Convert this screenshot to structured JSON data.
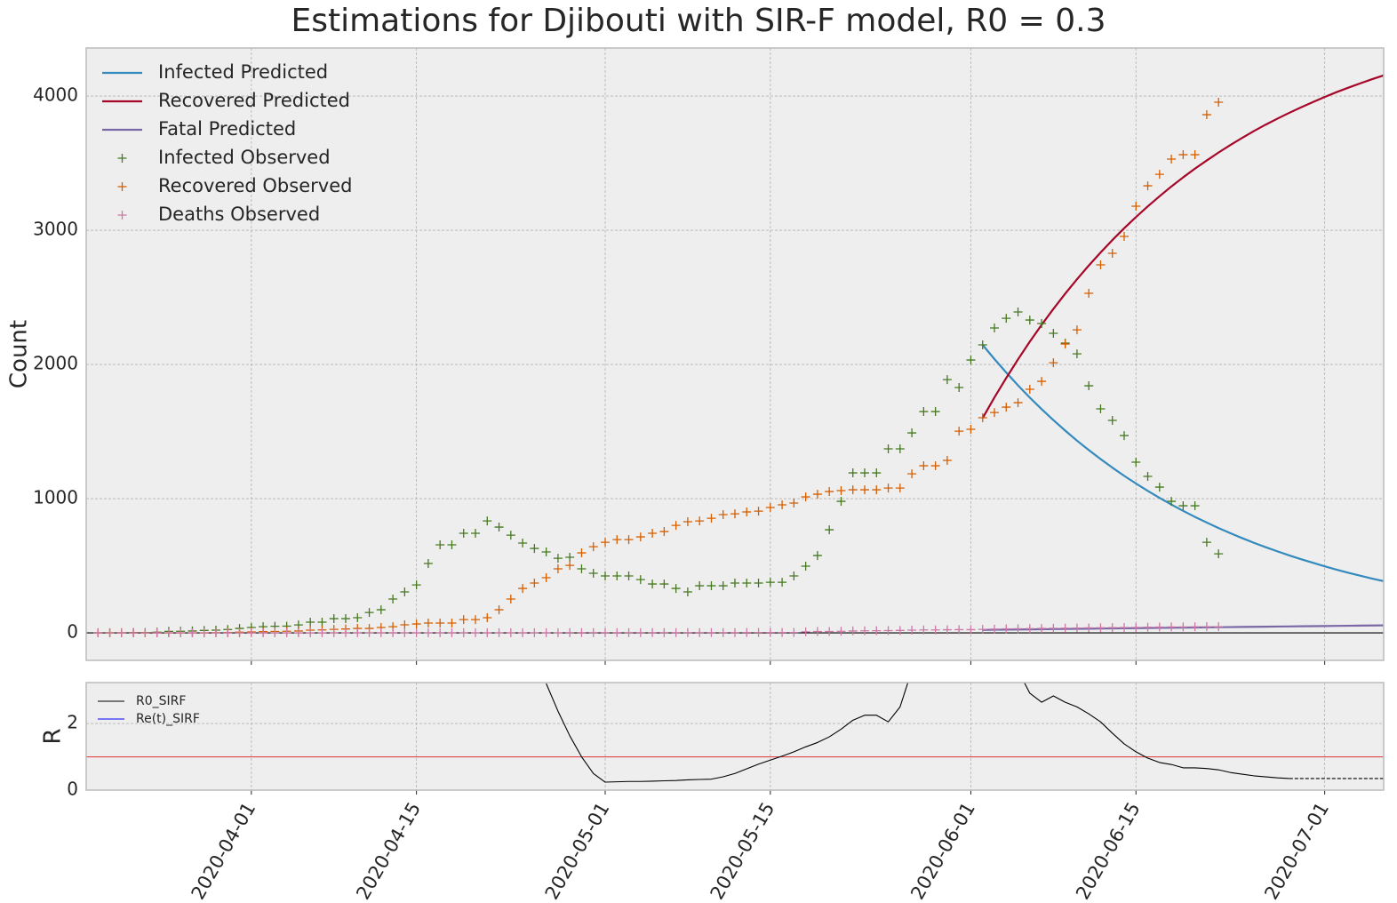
{
  "chart_data": [
    {
      "type": "line",
      "title": "Estimations for Djibouti with SIR-F model, R0 = 0.3",
      "ylabel": "Count",
      "xlim": [
        "2020-03-18",
        "2020-07-06"
      ],
      "xticks": [
        "2020-04-01",
        "2020-04-15",
        "2020-05-01",
        "2020-05-15",
        "2020-06-01",
        "2020-06-15",
        "2020-07-01"
      ],
      "ylim": [
        -205,
        4358
      ],
      "yticks": [
        0,
        1000,
        2000,
        3000,
        4000
      ],
      "grid": true,
      "legend": "upper left",
      "hline": {
        "value": 0,
        "color": "#000000"
      },
      "x": [
        "2020-03-19",
        "2020-03-20",
        "2020-03-21",
        "2020-03-22",
        "2020-03-23",
        "2020-03-24",
        "2020-03-25",
        "2020-03-26",
        "2020-03-27",
        "2020-03-28",
        "2020-03-29",
        "2020-03-30",
        "2020-03-31",
        "2020-04-01",
        "2020-04-02",
        "2020-04-03",
        "2020-04-04",
        "2020-04-05",
        "2020-04-06",
        "2020-04-07",
        "2020-04-08",
        "2020-04-09",
        "2020-04-10",
        "2020-04-11",
        "2020-04-12",
        "2020-04-13",
        "2020-04-14",
        "2020-04-15",
        "2020-04-16",
        "2020-04-17",
        "2020-04-18",
        "2020-04-19",
        "2020-04-20",
        "2020-04-21",
        "2020-04-22",
        "2020-04-23",
        "2020-04-24",
        "2020-04-25",
        "2020-04-26",
        "2020-04-27",
        "2020-04-28",
        "2020-04-29",
        "2020-04-30",
        "2020-05-01",
        "2020-05-02",
        "2020-05-03",
        "2020-05-04",
        "2020-05-05",
        "2020-05-06",
        "2020-05-07",
        "2020-05-08",
        "2020-05-09",
        "2020-05-10",
        "2020-05-11",
        "2020-05-12",
        "2020-05-13",
        "2020-05-14",
        "2020-05-15",
        "2020-05-16",
        "2020-05-17",
        "2020-05-18",
        "2020-05-19",
        "2020-05-20",
        "2020-05-21",
        "2020-05-22",
        "2020-05-23",
        "2020-05-24",
        "2020-05-25",
        "2020-05-26",
        "2020-05-27",
        "2020-05-28",
        "2020-05-29",
        "2020-05-30",
        "2020-05-31",
        "2020-06-01",
        "2020-06-02",
        "2020-06-03",
        "2020-06-04",
        "2020-06-05",
        "2020-06-06",
        "2020-06-07",
        "2020-06-08",
        "2020-06-09",
        "2020-06-10",
        "2020-06-11",
        "2020-06-12",
        "2020-06-13",
        "2020-06-14",
        "2020-06-15",
        "2020-06-16",
        "2020-06-17",
        "2020-06-18",
        "2020-06-19",
        "2020-06-20",
        "2020-06-21",
        "2020-06-22"
      ],
      "series": [
        {
          "name": "Infected Predicted",
          "color": "#348abd",
          "style": "line",
          "x": [
            "2020-06-02",
            "2020-06-03",
            "2020-06-04",
            "2020-06-05",
            "2020-06-06",
            "2020-06-07",
            "2020-06-08",
            "2020-06-09",
            "2020-06-10",
            "2020-06-11",
            "2020-06-12",
            "2020-06-13",
            "2020-06-14",
            "2020-06-15",
            "2020-06-16",
            "2020-06-17",
            "2020-06-18",
            "2020-06-19",
            "2020-06-20",
            "2020-06-21",
            "2020-06-22",
            "2020-06-23",
            "2020-06-24",
            "2020-06-25",
            "2020-06-26",
            "2020-06-27",
            "2020-06-28",
            "2020-06-29",
            "2020-06-30",
            "2020-07-01",
            "2020-07-02",
            "2020-07-03",
            "2020-07-04",
            "2020-07-05",
            "2020-07-06"
          ],
          "values": [
            2146,
            2040,
            1940,
            1844,
            1753,
            1667,
            1585,
            1507,
            1432,
            1362,
            1295,
            1231,
            1170,
            1113,
            1058,
            1006,
            956,
            909,
            864,
            822,
            781,
            743,
            706,
            671,
            638,
            607,
            577,
            549,
            522,
            496,
            471,
            448,
            426,
            405,
            385
          ]
        },
        {
          "name": "Recovered Predicted",
          "color": "#a60628",
          "style": "line",
          "x": [
            "2020-06-02",
            "2020-06-03",
            "2020-06-04",
            "2020-06-05",
            "2020-06-06",
            "2020-06-07",
            "2020-06-08",
            "2020-06-09",
            "2020-06-10",
            "2020-06-11",
            "2020-06-12",
            "2020-06-13",
            "2020-06-14",
            "2020-06-15",
            "2020-06-16",
            "2020-06-17",
            "2020-06-18",
            "2020-06-19",
            "2020-06-20",
            "2020-06-21",
            "2020-06-22",
            "2020-06-23",
            "2020-06-24",
            "2020-06-25",
            "2020-06-26",
            "2020-06-27",
            "2020-06-28",
            "2020-06-29",
            "2020-06-30",
            "2020-07-01",
            "2020-07-02",
            "2020-07-03",
            "2020-07-04",
            "2020-07-05",
            "2020-07-06"
          ],
          "values": [
            1600,
            1754,
            1899,
            2038,
            2170,
            2295,
            2414,
            2527,
            2635,
            2737,
            2834,
            2927,
            3015,
            3098,
            3178,
            3253,
            3326,
            3394,
            3459,
            3520,
            3579,
            3635,
            3688,
            3739,
            3787,
            3832,
            3875,
            3916,
            3955,
            3993,
            4029,
            4062,
            4094,
            4125,
            4154
          ]
        },
        {
          "name": "Fatal Predicted",
          "color": "#7a68a6",
          "style": "line",
          "x": [
            "2020-06-02",
            "2020-06-03",
            "2020-06-04",
            "2020-06-05",
            "2020-06-06",
            "2020-06-07",
            "2020-06-08",
            "2020-06-09",
            "2020-06-10",
            "2020-06-11",
            "2020-06-12",
            "2020-06-13",
            "2020-06-14",
            "2020-06-15",
            "2020-06-16",
            "2020-06-17",
            "2020-06-18",
            "2020-06-19",
            "2020-06-20",
            "2020-06-21",
            "2020-06-22",
            "2020-06-23",
            "2020-06-24",
            "2020-06-25",
            "2020-06-26",
            "2020-06-27",
            "2020-06-28",
            "2020-06-29",
            "2020-06-30",
            "2020-07-01",
            "2020-07-02",
            "2020-07-03",
            "2020-07-04",
            "2020-07-05",
            "2020-07-06"
          ],
          "values": [
            22,
            23,
            24,
            25,
            26,
            27,
            28,
            29,
            30,
            31,
            32,
            33,
            34,
            35,
            36,
            37,
            38,
            39,
            40,
            41,
            42,
            43,
            44,
            45,
            46,
            47,
            48,
            49,
            50,
            51,
            52,
            53,
            54,
            55,
            56
          ]
        },
        {
          "name": "Infected Observed",
          "color": "#467821",
          "style": "marker",
          "values": [
            1,
            1,
            1,
            3,
            3,
            5,
            11,
            12,
            14,
            18,
            20,
            25,
            33,
            40,
            46,
            49,
            50,
            59,
            80,
            80,
            106,
            106,
            113,
            152,
            172,
            252,
            305,
            357,
            517,
            656,
            656,
            742,
            742,
            834,
            788,
            728,
            669,
            629,
            603,
            556,
            563,
            477,
            444,
            424,
            424,
            424,
            397,
            364,
            364,
            331,
            305,
            351,
            351,
            351,
            371,
            371,
            371,
            377,
            377,
            424,
            497,
            576,
            768,
            980,
            1192,
            1192,
            1192,
            1371,
            1371,
            1490,
            1649,
            1649,
            1887,
            1828,
            2033,
            2146,
            2272,
            2344,
            2391,
            2331,
            2305,
            2232,
            2159,
            2079,
            1841,
            1669,
            1583,
            1470,
            1272,
            1166,
            1086,
            980,
            947,
            947,
            675,
            589
          ]
        },
        {
          "name": "Recovered Observed",
          "color": "#d55e00",
          "style": "marker",
          "values": [
            0,
            0,
            0,
            0,
            0,
            0,
            0,
            0,
            0,
            0,
            2,
            3,
            5,
            7,
            9,
            10,
            12,
            14,
            20,
            22,
            26,
            29,
            33,
            33,
            40,
            46,
            60,
            66,
            73,
            73,
            73,
            99,
            99,
            113,
            172,
            252,
            331,
            371,
            411,
            477,
            503,
            596,
            642,
            675,
            695,
            695,
            715,
            742,
            755,
            801,
            828,
            834,
            854,
            881,
            887,
            901,
            907,
            934,
            954,
            967,
            1013,
            1033,
            1053,
            1060,
            1066,
            1066,
            1066,
            1079,
            1079,
            1185,
            1245,
            1245,
            1285,
            1503,
            1517,
            1603,
            1642,
            1682,
            1715,
            1815,
            1874,
            2013,
            2152,
            2258,
            2530,
            2742,
            2828,
            2954,
            3179,
            3331,
            3417,
            3530,
            3563,
            3563,
            3861,
            3954
          ]
        },
        {
          "name": "Deaths Observed",
          "color": "#cc79a7",
          "style": "marker",
          "values": [
            0,
            0,
            0,
            0,
            0,
            0,
            0,
            0,
            0,
            0,
            0,
            0,
            0,
            0,
            0,
            0,
            0,
            0,
            0,
            0,
            1,
            1,
            1,
            1,
            1,
            1,
            1,
            1,
            1,
            1,
            1,
            1,
            1,
            1,
            1,
            1,
            1,
            1,
            1,
            1,
            2,
            2,
            2,
            2,
            2,
            2,
            2,
            2,
            2,
            2,
            2,
            2,
            2,
            2,
            2,
            3,
            3,
            3,
            3,
            3,
            8,
            10,
            10,
            12,
            14,
            15,
            16,
            17,
            18,
            20,
            22,
            22,
            23,
            24,
            24,
            26,
            28,
            30,
            31,
            32,
            33,
            34,
            35,
            36,
            37,
            38,
            39,
            40,
            41,
            42,
            43,
            44,
            44,
            45,
            46,
            46
          ]
        }
      ]
    },
    {
      "type": "line",
      "ylabel": "R",
      "xlim": [
        "2020-03-18",
        "2020-07-06"
      ],
      "xticks": [
        "2020-04-01",
        "2020-04-15",
        "2020-05-01",
        "2020-05-15",
        "2020-06-01",
        "2020-06-15",
        "2020-07-01"
      ],
      "ylim": [
        0,
        3.23
      ],
      "yticks": [
        0,
        2
      ],
      "grid": true,
      "legend": "upper left",
      "hline": {
        "value": 1,
        "color": "#e04848"
      },
      "series": [
        {
          "name": "R0_SIRF",
          "color": "#000000",
          "style": "line",
          "x": [
            "2020-04-26",
            "2020-04-27",
            "2020-04-28",
            "2020-04-29",
            "2020-04-30",
            "2020-05-01",
            "2020-05-02",
            "2020-05-03",
            "2020-05-04",
            "2020-05-05",
            "2020-05-06",
            "2020-05-07",
            "2020-05-08",
            "2020-05-09",
            "2020-05-10",
            "2020-05-11",
            "2020-05-12",
            "2020-05-13",
            "2020-05-14",
            "2020-05-15",
            "2020-05-16",
            "2020-05-17",
            "2020-05-18",
            "2020-05-19",
            "2020-05-20",
            "2020-05-21",
            "2020-05-22",
            "2020-05-23",
            "2020-05-24",
            "2020-05-25",
            "2020-05-26",
            "2020-05-27",
            "2020-05-28",
            "2020-05-29",
            "2020-05-30",
            "2020-05-31",
            "2020-06-01",
            "2020-06-02",
            "2020-06-03",
            "2020-06-04",
            "2020-06-05",
            "2020-06-06",
            "2020-06-07",
            "2020-06-08",
            "2020-06-09",
            "2020-06-10",
            "2020-06-11",
            "2020-06-12",
            "2020-06-13",
            "2020-06-14",
            "2020-06-15",
            "2020-06-16",
            "2020-06-17",
            "2020-06-18",
            "2020-06-19",
            "2020-06-20",
            "2020-06-21",
            "2020-06-22",
            "2020-06-23",
            "2020-06-24",
            "2020-06-25",
            "2020-06-26",
            "2020-06-27",
            "2020-06-28"
          ],
          "values": [
            3.2,
            2.37,
            1.63,
            1.0,
            0.5,
            0.24,
            0.25,
            0.26,
            0.26,
            0.27,
            0.28,
            0.29,
            0.31,
            0.32,
            0.33,
            0.4,
            0.5,
            0.64,
            0.78,
            0.9,
            1.02,
            1.15,
            1.3,
            1.43,
            1.6,
            1.83,
            2.1,
            2.25,
            2.25,
            2.05,
            2.5,
            3.6,
            null,
            null,
            null,
            null,
            null,
            null,
            null,
            null,
            3.6,
            2.91,
            2.64,
            2.83,
            2.64,
            2.5,
            2.29,
            2.05,
            1.71,
            1.39,
            1.15,
            0.96,
            0.83,
            0.77,
            0.67,
            0.67,
            0.65,
            0.61,
            0.53,
            0.48,
            0.43,
            0.4,
            0.37,
            0.35
          ]
        },
        {
          "name": "Re(t)_SIRF",
          "color": "#0000ff",
          "style": "line",
          "x": [],
          "values": []
        },
        {
          "color": "#000000",
          "style": "line",
          "dashed": true,
          "x": [
            "2020-06-28",
            "2020-07-06"
          ],
          "values": [
            0.35,
            0.35
          ]
        }
      ]
    }
  ]
}
